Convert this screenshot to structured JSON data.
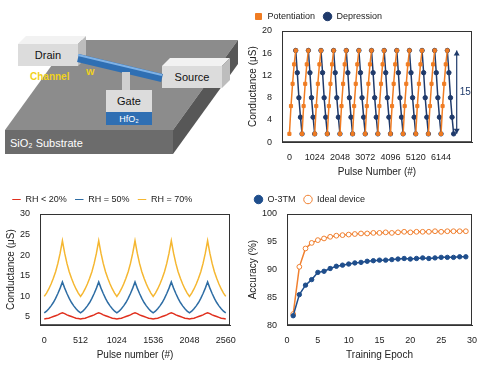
{
  "diagram": {
    "drain": "Drain",
    "source": "Source",
    "gate": "Gate",
    "metal": "W",
    "channel": "Channel",
    "dielectric": "HfO₂",
    "substrate": "SiO₂ Substrate"
  },
  "chart_data": [
    {
      "type": "line",
      "x_label": "Pulse Number (#)",
      "y_label": "Conductance (μS)",
      "x": [
        0,
        64,
        128,
        192,
        256,
        320,
        384,
        448,
        512,
        576,
        640,
        704,
        768,
        832,
        896,
        960,
        1024,
        1088,
        1152,
        1216,
        1280,
        1344,
        1408,
        1472,
        1536,
        1600,
        1664,
        1728,
        1792,
        1856,
        1920,
        1984,
        2048,
        2112,
        2176,
        2240,
        2304,
        2368,
        2432,
        2496,
        2560,
        2624,
        2688,
        2752,
        2816,
        2880,
        2944,
        3008,
        3072,
        3136,
        3200,
        3264,
        3328,
        3392,
        3456,
        3520,
        3584,
        3648,
        3712,
        3776,
        3840,
        3904,
        3968,
        4032,
        4096,
        4160,
        4224,
        4288,
        4352,
        4416,
        4480,
        4544,
        4608,
        4672,
        4736,
        4800,
        4864,
        4928,
        4992,
        5056,
        5120,
        5184,
        5248,
        5312,
        5376,
        5440,
        5504,
        5568,
        5632,
        5696,
        5760,
        5824,
        5888,
        5952,
        6016,
        6080,
        6144,
        6208,
        6272,
        6336,
        6400,
        6464,
        6528,
        6592,
        6656
      ],
      "series": [
        {
          "name": "Potentiation",
          "color": "#f07c22",
          "marker": "square",
          "values": [
            1.5,
            6.5,
            10.5,
            14,
            16.5,
            null,
            null,
            null,
            1.5,
            6.5,
            10.5,
            14,
            16.5,
            null,
            null,
            null,
            1.5,
            6.5,
            10.5,
            14,
            16.5,
            null,
            null,
            null,
            1.5,
            6.5,
            10.5,
            14,
            16.5,
            null,
            null,
            null,
            1.5,
            6.5,
            10.5,
            14,
            16.5,
            null,
            null,
            null,
            1.5,
            6.5,
            10.5,
            14,
            16.5,
            null,
            null,
            null,
            1.5,
            6.5,
            10.5,
            14,
            16.5,
            null,
            null,
            null,
            1.5,
            6.5,
            10.5,
            14,
            16.5,
            null,
            null,
            null,
            1.5,
            6.5,
            10.5,
            14,
            16.5,
            null,
            null,
            null,
            1.5,
            6.5,
            10.5,
            14,
            16.5,
            null,
            null,
            null,
            1.5,
            6.5,
            10.5,
            14,
            16.5,
            null,
            null,
            null,
            1.5,
            6.5,
            10.5,
            14,
            16.5,
            null,
            null,
            null,
            1.5,
            6.5,
            10.5,
            14,
            16.5,
            null,
            null,
            null,
            null
          ]
        },
        {
          "name": "Depression",
          "color": "#1f3a6b",
          "marker": "circle",
          "values": [
            null,
            null,
            null,
            null,
            16.5,
            12.5,
            8,
            4.5,
            1.5,
            null,
            null,
            null,
            16.5,
            12.5,
            8,
            4.5,
            1.5,
            null,
            null,
            null,
            16.5,
            12.5,
            8,
            4.5,
            1.5,
            null,
            null,
            null,
            16.5,
            12.5,
            8,
            4.5,
            1.5,
            null,
            null,
            null,
            16.5,
            12.5,
            8,
            4.5,
            1.5,
            null,
            null,
            null,
            16.5,
            12.5,
            8,
            4.5,
            1.5,
            null,
            null,
            null,
            16.5,
            12.5,
            8,
            4.5,
            1.5,
            null,
            null,
            null,
            16.5,
            12.5,
            8,
            4.5,
            1.5,
            null,
            null,
            null,
            16.5,
            12.5,
            8,
            4.5,
            1.5,
            null,
            null,
            null,
            16.5,
            12.5,
            8,
            4.5,
            1.5,
            null,
            null,
            null,
            16.5,
            12.5,
            8,
            4.5,
            1.5,
            null,
            null,
            null,
            16.5,
            12.5,
            8,
            4.5,
            1.5,
            null,
            null,
            null,
            16.5,
            12.5,
            8,
            4.5,
            1.5
          ]
        }
      ],
      "xlim": [
        -300,
        7400
      ],
      "xticks": [
        0,
        1024,
        2048,
        3072,
        4096,
        5120,
        6144
      ],
      "ylim": [
        0,
        20
      ],
      "yticks": [
        0,
        4,
        8,
        12,
        16,
        20
      ],
      "grid": false,
      "legend": "top",
      "annotations": [
        {
          "text": "15",
          "x": 6780,
          "y": 9
        }
      ]
    },
    {
      "type": "line",
      "x_label": "Pulse number (#)",
      "y_label": "Conductance (μS)",
      "x": [
        0,
        32,
        64,
        96,
        128,
        160,
        192,
        224,
        256,
        288,
        320,
        352,
        384,
        416,
        448,
        480,
        512,
        544,
        576,
        608,
        640,
        672,
        704,
        736,
        768,
        800,
        832,
        864,
        896,
        928,
        960,
        992,
        1024,
        1056,
        1088,
        1120,
        1152,
        1184,
        1216,
        1248,
        1280,
        1312,
        1344,
        1376,
        1408,
        1440,
        1472,
        1504,
        1536,
        1568,
        1600,
        1632,
        1664,
        1696,
        1728,
        1760,
        1792,
        1824,
        1856,
        1888,
        1920,
        1952,
        1984,
        2016,
        2048,
        2080,
        2112,
        2144,
        2176,
        2208,
        2240,
        2272,
        2304,
        2336,
        2368,
        2400,
        2432,
        2464,
        2496,
        2528,
        2560
      ],
      "series": [
        {
          "name": "RH < 20%",
          "color": "#e0301e",
          "marker": "none",
          "values": [
            4.5,
            4.6,
            4.7,
            4.9,
            5.1,
            5.3,
            5.5,
            5.8,
            6,
            5.8,
            5.5,
            5.3,
            5.1,
            4.9,
            4.7,
            4.6,
            4.5,
            4.6,
            4.7,
            4.9,
            5.1,
            5.3,
            5.5,
            5.8,
            6,
            5.8,
            5.5,
            5.3,
            5.1,
            4.9,
            4.7,
            4.6,
            4.5,
            4.6,
            4.7,
            4.9,
            5.1,
            5.3,
            5.5,
            5.8,
            6,
            5.8,
            5.5,
            5.3,
            5.1,
            4.9,
            4.7,
            4.6,
            4.5,
            4.6,
            4.7,
            4.9,
            5.1,
            5.3,
            5.5,
            5.8,
            6,
            5.8,
            5.5,
            5.3,
            5.1,
            4.9,
            4.7,
            4.6,
            4.5,
            4.6,
            4.7,
            4.9,
            5.1,
            5.3,
            5.5,
            5.8,
            6,
            5.8,
            5.5,
            5.3,
            5.1,
            4.9,
            4.7,
            4.6,
            4.5
          ]
        },
        {
          "name": "RH = 50%",
          "color": "#2e6da4",
          "marker": "none",
          "values": [
            6,
            6.4,
            7,
            7.7,
            8.5,
            9.5,
            10.7,
            12,
            13.5,
            12,
            10.7,
            9.5,
            8.5,
            7.7,
            7,
            6.4,
            6,
            6.4,
            7,
            7.7,
            8.5,
            9.5,
            10.7,
            12,
            13.5,
            12,
            10.7,
            9.5,
            8.5,
            7.7,
            7,
            6.4,
            6,
            6.4,
            7,
            7.7,
            8.5,
            9.5,
            10.7,
            12,
            13.5,
            12,
            10.7,
            9.5,
            8.5,
            7.7,
            7,
            6.4,
            6,
            6.4,
            7,
            7.7,
            8.5,
            9.5,
            10.7,
            12,
            13.5,
            12,
            10.7,
            9.5,
            8.5,
            7.7,
            7,
            6.4,
            6,
            6.4,
            7,
            7.7,
            8.5,
            9.5,
            10.7,
            12,
            13.5,
            12,
            10.7,
            9.5,
            8.5,
            7.7,
            7,
            6.4,
            6
          ]
        },
        {
          "name": "RH = 70%",
          "color": "#f5b731",
          "marker": "none",
          "values": [
            10,
            10.8,
            11.8,
            13,
            14.4,
            16,
            18,
            20.5,
            23.5,
            20.5,
            18,
            16,
            14.4,
            13,
            11.8,
            10.8,
            10,
            10.8,
            11.8,
            13,
            14.4,
            16,
            18,
            20.5,
            23.5,
            20.5,
            18,
            16,
            14.4,
            13,
            11.8,
            10.8,
            10,
            10.8,
            11.8,
            13,
            14.4,
            16,
            18,
            20.5,
            23.5,
            20.5,
            18,
            16,
            14.4,
            13,
            11.8,
            10.8,
            10,
            10.8,
            11.8,
            13,
            14.4,
            16,
            18,
            20.5,
            23.5,
            20.5,
            18,
            16,
            14.4,
            13,
            11.8,
            10.8,
            10,
            10.8,
            11.8,
            13,
            14.4,
            16,
            18,
            20.5,
            23.5,
            20.5,
            18,
            16,
            14.4,
            13,
            11.8,
            10.8,
            10
          ]
        }
      ],
      "xlim": [
        -60,
        2620
      ],
      "xticks": [
        0,
        512,
        1024,
        1536,
        2048,
        2560
      ],
      "ylim": [
        3,
        30
      ],
      "yticks": [
        5,
        10,
        15,
        20,
        25,
        30
      ],
      "grid": false,
      "legend": "top"
    },
    {
      "type": "line",
      "x_label": "Training Epoch",
      "y_label": "Accuracy (%)",
      "x": [
        1,
        2,
        3,
        4,
        5,
        6,
        7,
        8,
        9,
        10,
        11,
        12,
        13,
        14,
        15,
        16,
        17,
        18,
        19,
        20,
        21,
        22,
        23,
        24,
        25,
        26,
        27,
        28,
        29
      ],
      "series": [
        {
          "name": "O-3TM",
          "color": "#1f4e8c",
          "marker": "circle",
          "values": [
            81.7,
            85.5,
            87.2,
            88.2,
            89.5,
            89.7,
            90.2,
            90.6,
            90.8,
            91,
            91.2,
            91.3,
            91.5,
            91.6,
            91.7,
            91.7,
            91.8,
            91.9,
            92,
            91.9,
            92,
            92.1,
            92,
            92.1,
            92.2,
            92.2,
            92.2,
            92.3,
            92.3
          ]
        },
        {
          "name": "Ideal device",
          "color": "#f08030",
          "marker": "open_circle",
          "values": [
            82,
            90.5,
            93.8,
            94.8,
            95.3,
            95.6,
            95.9,
            96.1,
            96.2,
            96.3,
            96.4,
            96.5,
            96.5,
            96.6,
            96.6,
            96.7,
            96.6,
            96.7,
            96.8,
            96.7,
            96.8,
            96.8,
            96.8,
            96.9,
            96.8,
            96.9,
            96.9,
            96.9,
            96.9
          ]
        }
      ],
      "xlim": [
        0,
        30
      ],
      "xticks": [
        0,
        5,
        10,
        15,
        20,
        25,
        30
      ],
      "ylim": [
        80,
        100
      ],
      "yticks": [
        80,
        85,
        90,
        95,
        100
      ],
      "grid": false,
      "legend": "top"
    }
  ]
}
